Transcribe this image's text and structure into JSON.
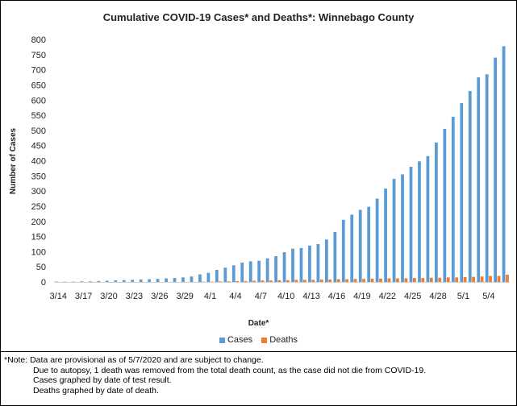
{
  "chart_data": {
    "type": "bar",
    "title": "Cumulative COVID-19 Cases* and Deaths*: Winnebago County",
    "xlabel": "Date*",
    "ylabel": "Number of Cases",
    "ylim": [
      0,
      800
    ],
    "yticks": [
      0,
      50,
      100,
      150,
      200,
      250,
      300,
      350,
      400,
      450,
      500,
      550,
      600,
      650,
      700,
      750,
      800
    ],
    "x_tick_labels": [
      "3/14",
      "3/17",
      "3/20",
      "3/23",
      "3/26",
      "3/29",
      "4/1",
      "4/4",
      "4/7",
      "4/10",
      "4/13",
      "4/16",
      "4/19",
      "4/22",
      "4/25",
      "4/28",
      "5/1",
      "5/4"
    ],
    "categories": [
      "3/14",
      "3/15",
      "3/16",
      "3/17",
      "3/18",
      "3/19",
      "3/20",
      "3/21",
      "3/22",
      "3/23",
      "3/24",
      "3/25",
      "3/26",
      "3/27",
      "3/28",
      "3/29",
      "3/30",
      "3/31",
      "4/1",
      "4/2",
      "4/3",
      "4/4",
      "4/5",
      "4/6",
      "4/7",
      "4/8",
      "4/9",
      "4/10",
      "4/11",
      "4/12",
      "4/13",
      "4/14",
      "4/15",
      "4/16",
      "4/17",
      "4/18",
      "4/19",
      "4/20",
      "4/21",
      "4/22",
      "4/23",
      "4/24",
      "4/25",
      "4/26",
      "4/27",
      "4/28",
      "4/29",
      "4/30",
      "5/1",
      "5/2",
      "5/3",
      "5/4",
      "5/5",
      "5/6"
    ],
    "series": [
      {
        "name": "Cases",
        "color": "#5b9bd5",
        "values": [
          1,
          1,
          1,
          2,
          2,
          3,
          4,
          5,
          6,
          7,
          8,
          9,
          10,
          12,
          13,
          15,
          18,
          25,
          30,
          40,
          47,
          55,
          64,
          68,
          70,
          78,
          85,
          98,
          110,
          112,
          120,
          125,
          140,
          165,
          205,
          222,
          238,
          248,
          275,
          308,
          340,
          355,
          380,
          398,
          415,
          460,
          505,
          545,
          590,
          630,
          675,
          685,
          740,
          778
        ]
      },
      {
        "name": "Deaths",
        "color": "#ed7d31",
        "values": [
          0,
          0,
          0,
          0,
          0,
          0,
          0,
          0,
          0,
          0,
          0,
          0,
          0,
          0,
          0,
          0,
          0,
          1,
          1,
          2,
          2,
          3,
          3,
          4,
          5,
          5,
          6,
          6,
          7,
          7,
          7,
          8,
          8,
          9,
          9,
          10,
          10,
          11,
          11,
          12,
          12,
          12,
          13,
          13,
          14,
          14,
          15,
          15,
          16,
          17,
          18,
          20,
          20,
          24
        ]
      }
    ],
    "legend_position": "bottom",
    "grid": false
  },
  "note": {
    "line1": "*Note: Data are provisional as of 5/7/2020 and are subject to change.",
    "line2": "Due to autopsy, 1 death was removed from the total death count, as the case did not die from COVID-19.",
    "line3": "Cases graphed by date of test result.",
    "line4": "Deaths graphed by date of death."
  }
}
